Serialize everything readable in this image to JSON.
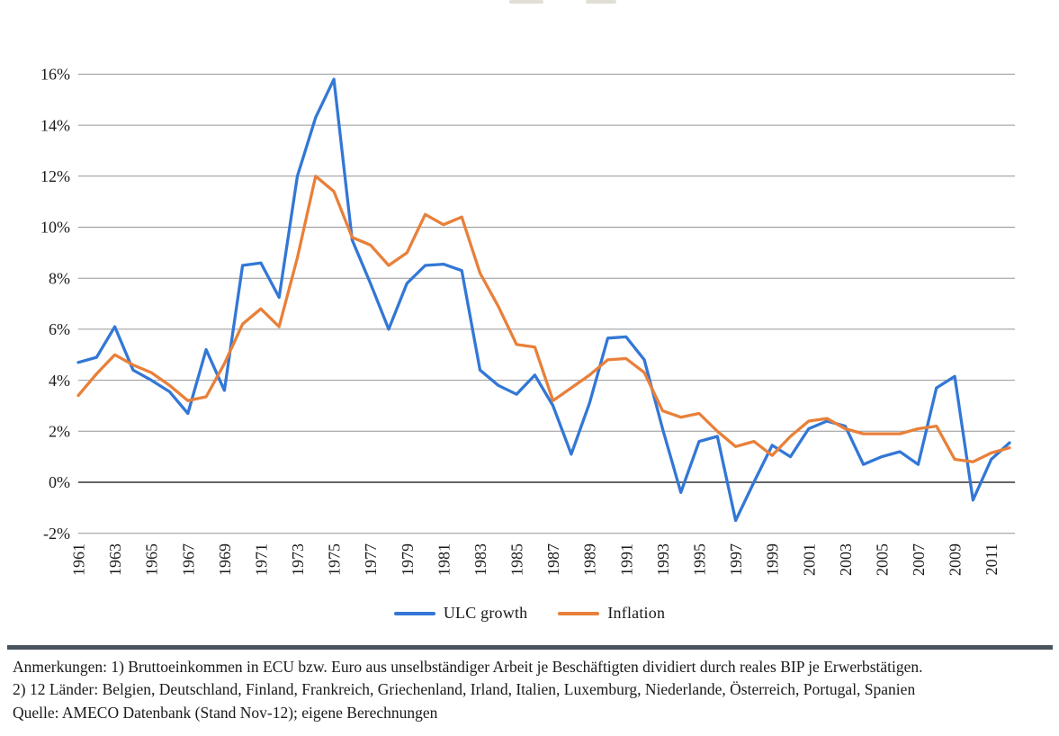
{
  "chart_data": {
    "type": "line",
    "x": [
      1961,
      1962,
      1963,
      1964,
      1965,
      1966,
      1967,
      1968,
      1969,
      1970,
      1971,
      1972,
      1973,
      1974,
      1975,
      1976,
      1977,
      1978,
      1979,
      1980,
      1981,
      1982,
      1983,
      1984,
      1985,
      1986,
      1987,
      1988,
      1989,
      1990,
      1991,
      1992,
      1993,
      1994,
      1995,
      1996,
      1997,
      1998,
      1999,
      2000,
      2001,
      2002,
      2003,
      2004,
      2005,
      2006,
      2007,
      2008,
      2009,
      2010,
      2011,
      2012
    ],
    "series": [
      {
        "name": "ULC growth",
        "color": "#3377D6",
        "values": [
          4.7,
          4.9,
          6.1,
          4.4,
          4.0,
          3.55,
          2.7,
          5.2,
          3.6,
          8.5,
          8.6,
          7.25,
          12.0,
          14.3,
          15.8,
          9.5,
          7.8,
          6.0,
          7.8,
          8.5,
          8.55,
          8.3,
          4.4,
          3.8,
          3.45,
          4.2,
          3.0,
          1.1,
          3.1,
          5.65,
          5.7,
          4.8,
          2.1,
          -0.4,
          1.6,
          1.8,
          -1.5,
          0.0,
          1.45,
          1.0,
          2.1,
          2.4,
          2.2,
          0.7,
          1.0,
          1.2,
          0.7,
          3.7,
          4.15,
          -0.7,
          0.9,
          1.55
        ]
      },
      {
        "name": "Inflation",
        "color": "#E8803A",
        "values": [
          3.4,
          4.25,
          5.0,
          4.6,
          4.3,
          3.8,
          3.2,
          3.35,
          4.65,
          6.2,
          6.8,
          6.1,
          8.8,
          12.0,
          11.4,
          9.6,
          9.3,
          8.5,
          9.0,
          10.5,
          10.1,
          10.4,
          8.2,
          6.9,
          5.4,
          5.3,
          3.2,
          3.7,
          4.2,
          4.8,
          4.85,
          4.3,
          2.8,
          2.55,
          2.7,
          2.0,
          1.4,
          1.6,
          1.05,
          1.8,
          2.4,
          2.5,
          2.1,
          1.9,
          1.9,
          1.9,
          2.1,
          2.2,
          0.9,
          0.8,
          1.15,
          1.35
        ]
      }
    ],
    "ylim": [
      -2,
      16
    ],
    "ytick_step": 2,
    "ytick_suffix": "%",
    "xtick_labels": [
      "1961",
      "1963",
      "1965",
      "1967",
      "1969",
      "1971",
      "1973",
      "1975",
      "1977",
      "1979",
      "1981",
      "1983",
      "1985",
      "1987",
      "1989",
      "1991",
      "1993",
      "1995",
      "1997",
      "1999",
      "2001",
      "2003",
      "2005",
      "2007",
      "2009",
      "2011"
    ],
    "grid": true,
    "legend_position": "bottom"
  },
  "colors": {
    "gridline": "#969696",
    "zero_axis": "#333333",
    "divider": "#49545E"
  },
  "footer": {
    "line1": "Anmerkungen: 1) Bruttoeinkommen in ECU bzw. Euro aus unselbständiger Arbeit je Beschäftigten dividiert durch reales BIP je Erwerbstätigen.",
    "line2": "2) 12 Länder: Belgien, Deutschland, Finland, Frankreich, Griechenland, Irland, Italien, Luxemburg, Niederlande, Österreich, Portugal, Spanien",
    "line3": "Quelle:  AMECO Datenbank (Stand Nov-12); eigene Berechnungen"
  }
}
